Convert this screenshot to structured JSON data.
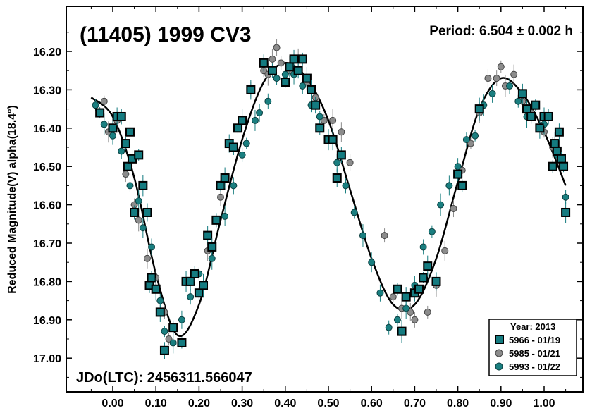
{
  "chart_data": {
    "type": "scatter",
    "title": "(11405) 1999 CV3",
    "period_text": "Period: 6.504 ± 0.002 h",
    "jdo_text": "JDo(LTC): 2456311.566047",
    "xlabel": "",
    "ylabel": "Reduced Magnitude(V) alpha(18.4°)",
    "xlim": [
      -0.1,
      1.09
    ],
    "ylim": [
      17.09,
      16.11
    ],
    "y_inverted": true,
    "x_ticks": [
      "0.00",
      "0.10",
      "0.20",
      "0.30",
      "0.40",
      "0.50",
      "0.60",
      "0.70",
      "0.80",
      "0.90",
      "1.00"
    ],
    "x_tick_values": [
      0.0,
      0.1,
      0.2,
      0.3,
      0.4,
      0.5,
      0.6,
      0.7,
      0.8,
      0.9,
      1.0
    ],
    "y_ticks": [
      "16.20",
      "16.30",
      "16.40",
      "16.50",
      "16.60",
      "16.70",
      "16.80",
      "16.90",
      "17.00"
    ],
    "y_tick_values": [
      16.2,
      16.3,
      16.4,
      16.5,
      16.6,
      16.7,
      16.8,
      16.9,
      17.0
    ],
    "grid": false,
    "legend": {
      "title": "Year: 2013",
      "placement": "bottom-right"
    },
    "fit_curve": {
      "x": [
        -0.05,
        0.0,
        0.05,
        0.1,
        0.15,
        0.2,
        0.25,
        0.3,
        0.35,
        0.4,
        0.45,
        0.5,
        0.55,
        0.6,
        0.65,
        0.7,
        0.75,
        0.8,
        0.85,
        0.9,
        0.95,
        1.0,
        1.05
      ],
      "y": [
        16.32,
        16.37,
        16.53,
        16.78,
        16.94,
        16.86,
        16.64,
        16.43,
        16.28,
        16.23,
        16.27,
        16.38,
        16.56,
        16.74,
        16.86,
        16.86,
        16.74,
        16.54,
        16.35,
        16.27,
        16.31,
        16.41,
        16.55
      ]
    },
    "series": [
      {
        "name": "5966 - 01/19",
        "marker": "square",
        "color": "#147b80",
        "edge": "#000000",
        "x": [
          -0.03,
          0.0,
          0.01,
          0.02,
          0.03,
          0.035,
          0.04,
          0.045,
          0.05,
          0.06,
          0.07,
          0.08,
          0.085,
          0.09,
          0.1,
          0.11,
          0.12,
          0.14,
          0.16,
          0.17,
          0.18,
          0.19,
          0.2,
          0.21,
          0.22,
          0.23,
          0.24,
          0.25,
          0.26,
          0.27,
          0.28,
          0.29,
          0.3,
          0.32,
          0.35,
          0.37,
          0.4,
          0.41,
          0.42,
          0.43,
          0.44,
          0.45,
          0.46,
          0.47,
          0.48,
          0.5,
          0.51,
          0.52,
          0.53,
          0.66,
          0.67,
          0.68,
          0.7,
          0.71,
          0.72,
          0.73,
          0.75,
          0.8,
          0.81,
          0.85,
          0.95,
          0.96,
          0.97,
          0.98,
          0.99,
          1.0,
          1.01,
          1.02,
          1.025,
          1.03,
          1.035,
          1.04,
          1.045,
          1.05
        ],
        "y": [
          16.36,
          16.4,
          16.37,
          16.37,
          16.44,
          16.5,
          16.41,
          16.48,
          16.62,
          16.47,
          16.55,
          16.62,
          16.81,
          16.79,
          16.82,
          16.88,
          16.98,
          16.92,
          16.96,
          16.8,
          16.8,
          16.78,
          16.83,
          16.81,
          16.68,
          16.71,
          16.64,
          16.55,
          16.53,
          16.44,
          16.45,
          16.4,
          16.38,
          16.3,
          16.23,
          16.25,
          16.28,
          16.24,
          16.22,
          16.25,
          16.22,
          16.27,
          16.3,
          16.34,
          16.4,
          16.43,
          16.43,
          16.53,
          16.47,
          16.82,
          16.93,
          16.84,
          16.83,
          16.82,
          16.79,
          16.76,
          16.8,
          16.52,
          16.55,
          16.35,
          16.31,
          16.35,
          16.37,
          16.34,
          16.4,
          16.37,
          16.37,
          16.5,
          16.44,
          16.46,
          16.41,
          16.48,
          16.5,
          16.62
        ]
      },
      {
        "name": "5985 - 01/21",
        "marker": "circle",
        "color": "#8c8c8c",
        "edge": "#444444",
        "x": [
          -0.02,
          -0.01,
          0.01,
          0.03,
          0.05,
          0.06,
          0.08,
          0.1,
          0.12,
          0.13,
          0.22,
          0.25,
          0.32,
          0.35,
          0.36,
          0.37,
          0.38,
          0.39,
          0.41,
          0.43,
          0.45,
          0.47,
          0.49,
          0.51,
          0.53,
          0.55,
          0.63,
          0.65,
          0.67,
          0.69,
          0.7,
          0.73,
          0.75,
          0.77,
          0.79,
          0.81,
          0.83,
          0.85,
          0.87,
          0.89,
          0.9,
          0.91,
          0.93,
          0.95,
          0.97,
          1.0,
          1.02
        ],
        "y": [
          16.33,
          16.41,
          16.38,
          16.52,
          16.6,
          16.64,
          16.74,
          16.79,
          16.88,
          16.95,
          16.72,
          16.58,
          16.3,
          16.25,
          16.26,
          16.22,
          16.19,
          16.23,
          16.25,
          16.22,
          16.28,
          16.32,
          16.38,
          16.38,
          16.41,
          16.49,
          16.68,
          16.84,
          16.87,
          16.88,
          16.9,
          16.88,
          16.81,
          16.72,
          16.61,
          16.51,
          16.44,
          16.36,
          16.27,
          16.27,
          16.24,
          16.29,
          16.26,
          16.33,
          16.36,
          16.41,
          16.45
        ]
      },
      {
        "name": "5993 - 01/22",
        "marker": "circle",
        "color": "#1a7f80",
        "edge": "#0b3f40",
        "x": [
          -0.04,
          -0.02,
          0.0,
          0.02,
          0.04,
          0.06,
          0.07,
          0.09,
          0.11,
          0.12,
          0.14,
          0.16,
          0.18,
          0.2,
          0.23,
          0.26,
          0.28,
          0.3,
          0.31,
          0.33,
          0.34,
          0.36,
          0.38,
          0.4,
          0.42,
          0.44,
          0.46,
          0.48,
          0.5,
          0.52,
          0.54,
          0.56,
          0.58,
          0.6,
          0.62,
          0.64,
          0.66,
          0.68,
          0.7,
          0.72,
          0.74,
          0.76,
          0.78,
          0.8,
          0.82,
          0.84,
          0.86,
          0.88,
          0.92,
          0.94,
          0.96,
          1.0,
          1.03,
          1.05
        ],
        "y": [
          16.34,
          16.39,
          16.42,
          16.46,
          16.55,
          16.59,
          16.66,
          16.71,
          16.85,
          16.93,
          16.96,
          16.9,
          16.84,
          16.78,
          16.74,
          16.63,
          16.55,
          16.47,
          16.44,
          16.38,
          16.36,
          16.33,
          16.27,
          16.26,
          16.26,
          16.29,
          16.34,
          16.37,
          16.43,
          16.49,
          16.55,
          16.62,
          16.68,
          16.75,
          16.83,
          16.92,
          16.9,
          16.87,
          16.81,
          16.71,
          16.67,
          16.6,
          16.55,
          16.5,
          16.43,
          16.42,
          16.34,
          16.31,
          16.29,
          16.33,
          16.37,
          16.39,
          16.47,
          16.58
        ]
      }
    ]
  }
}
